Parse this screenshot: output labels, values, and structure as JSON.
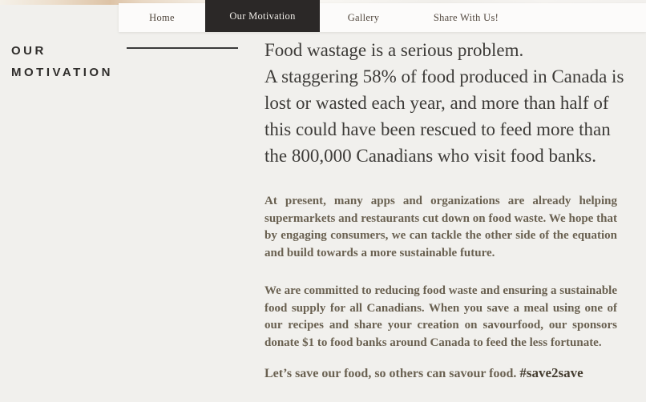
{
  "page": {
    "background_color": "#f1f0ed"
  },
  "nav": {
    "bar_color": "#fcfbfa",
    "active_tab_color": "#2b2827",
    "active_tab_text_color": "#eeebe6",
    "items": [
      {
        "label": "Home",
        "active": false
      },
      {
        "label": "Our Motivation",
        "active": true
      },
      {
        "label": "Gallery",
        "active": false
      },
      {
        "label": "Share With Us!",
        "active": false
      }
    ]
  },
  "sidebar": {
    "title_line1": "OUR",
    "title_line2": "MOTIVATION"
  },
  "main": {
    "headline_color": "#3d3b38",
    "body_text_color": "#6a6151",
    "headline_lines": [
      "Food wastage is a serious problem.",
      "A staggering 58% of food produced in Canada is",
      "lost or wasted each year, and more than half of",
      "this could have been rescued to feed more than",
      "the 800,000 Canadians who visit food banks."
    ],
    "paragraphs": [
      "At present, many apps and organizations are already helping supermarkets and restaurants cut down on food waste. We hope that by engaging consumers, we can tackle the other side of the equation and build towards a more sustainable future.",
      "We are committed to reducing food waste and ensuring a sustainable food supply for all Canadians. When you save a meal using one of our recipes and share your creation on savourfood, our sponsors donate $1 to food banks around Canada to feed the less fortunate."
    ],
    "closing": {
      "text": "Let’s save our food, so others can savour food. ",
      "hashtag": "#save2save",
      "hashtag_color": "#453d30"
    }
  }
}
